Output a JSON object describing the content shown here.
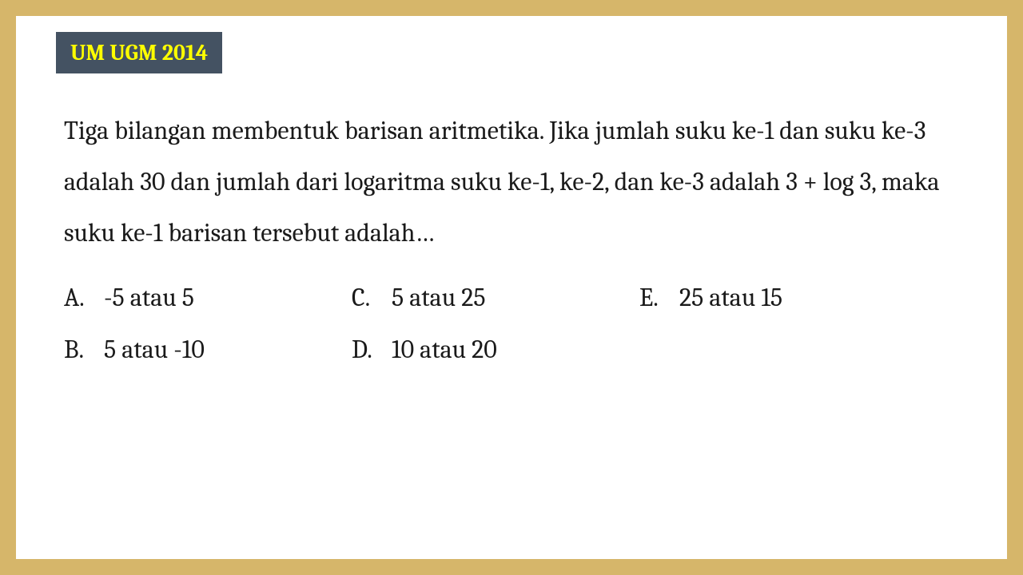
{
  "badge": {
    "text": "UM UGM 2014",
    "bg_color": "#445262",
    "text_color": "#ffff00"
  },
  "question": {
    "text": "Tiga bilangan membentuk barisan aritmetika. Jika jumlah suku ke-1 dan suku ke-3 adalah 30 dan jumlah dari logaritma suku ke-1, ke-2, dan ke-3 adalah 3 + log 3, maka suku ke-1 barisan tersebut adalah…"
  },
  "options": {
    "A": {
      "letter": "A.",
      "text": "-5 atau 5"
    },
    "B": {
      "letter": "B.",
      "text": "5 atau -10"
    },
    "C": {
      "letter": "C.",
      "text": "5 atau 25"
    },
    "D": {
      "letter": "D.",
      "text": "10 atau 20"
    },
    "E": {
      "letter": "E.",
      "text": "25 atau 15"
    }
  },
  "colors": {
    "page_bg": "#d6b66a",
    "card_bg": "#ffffff",
    "text": "#1a1a1a"
  },
  "typography": {
    "question_fontsize": 32,
    "badge_fontsize": 28,
    "option_fontsize": 32,
    "line_height": 2.0
  }
}
